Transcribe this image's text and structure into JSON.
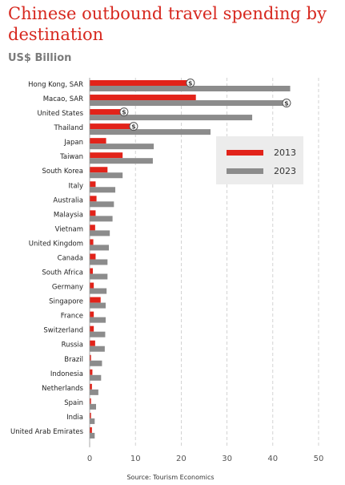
{
  "chart_data": {
    "type": "bar",
    "orientation": "horizontal",
    "title": "Chinese outbound travel spending by destination",
    "subtitle": "US$ Billion",
    "source": "Source: Tourism Economics",
    "categories": [
      "Hong Kong, SAR",
      "Macao, SAR",
      "United States",
      "Thailand",
      "Japan",
      "Taiwan",
      "South Korea",
      "Italy",
      "Australia",
      "Malaysia",
      "Vietnam",
      "United Kingdom",
      "Canada",
      "South Africa",
      "Germany",
      "Singapore",
      "France",
      "Switzerland",
      "Russia",
      "Brazil",
      "Indonesia",
      "Netherlands",
      "Spain",
      "India",
      "United Arab Emirates"
    ],
    "series": [
      {
        "name": "2013",
        "color": "#e2231a",
        "values": [
          22,
          23.2,
          7.5,
          9.6,
          3.6,
          7.2,
          3.9,
          1.3,
          1.5,
          1.3,
          1.2,
          0.8,
          1.3,
          0.7,
          0.9,
          2.4,
          0.9,
          0.9,
          1.2,
          0.3,
          0.6,
          0.5,
          0.3,
          0.3,
          0.5
        ]
      },
      {
        "name": "2023",
        "color": "#8c8c8c",
        "values": [
          43.8,
          43,
          35.5,
          26.4,
          14,
          13.8,
          7.2,
          5.6,
          5.3,
          5,
          4.4,
          4.2,
          3.9,
          3.9,
          3.7,
          3.5,
          3.5,
          3.4,
          3.3,
          2.7,
          2.5,
          1.9,
          1.4,
          1.1,
          1.1
        ]
      }
    ],
    "dollar_markers": [
      {
        "category": "Hong Kong, SAR",
        "series": "2013",
        "label": "$"
      },
      {
        "category": "Macao, SAR",
        "series": "2023",
        "label": "$"
      },
      {
        "category": "United States",
        "series": "2013",
        "label": "$"
      },
      {
        "category": "Thailand",
        "series": "2013",
        "label": "$"
      }
    ],
    "xticks": [
      0,
      10,
      20,
      30,
      40,
      50
    ],
    "xlim": [
      0,
      50
    ],
    "grid": "vertical dashed",
    "legend_position": "top-right"
  }
}
